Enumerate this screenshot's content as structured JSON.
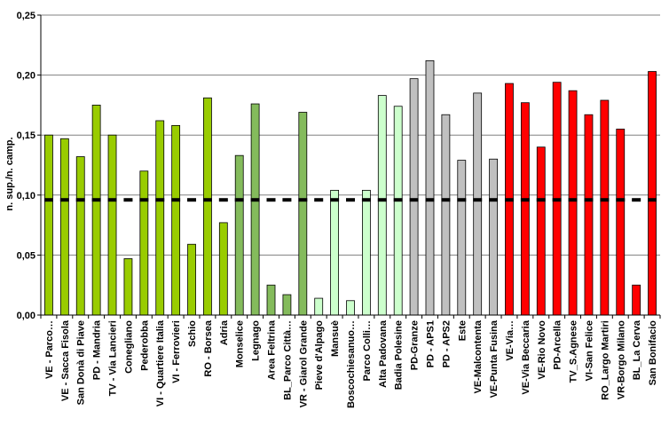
{
  "chart_data": {
    "type": "bar",
    "title": "",
    "xlabel": "",
    "ylabel": "n. sup./n. camp.",
    "ylim": [
      0,
      0.25
    ],
    "yticks": [
      0,
      0.05,
      0.1,
      0.15,
      0.2,
      0.25
    ],
    "yticks_labels": [
      "0,00",
      "0,05",
      "0,10",
      "0,15",
      "0,20",
      "0,25"
    ],
    "grid": "horizontal",
    "legend": "none",
    "reference_line": {
      "value": 0.096,
      "style": "dashed",
      "color": "#000000"
    },
    "categories": [
      "VE - Parco…",
      "VE - Sacca Fisola",
      "San Donà di Piave",
      "PD - Mandria",
      "TV - Via Lancieri",
      "Conegliano",
      "Pederobba",
      "VI - Quartiere Italia",
      "VI - Ferrovieri",
      "Schio",
      "RO - Borsea",
      "Adria",
      "Monselice",
      "Legnago",
      "Area Feltrina",
      "BL_Parco Città…",
      "VR - Giarol Grande",
      "Pieve d'Alpago",
      "Mansuè",
      "Boscochiesanuo…",
      "Parco Colli…",
      "Alta Padovana",
      "Badia Polesine",
      "PD-Granze",
      "PD - APS1",
      "PD - APS2",
      "Este",
      "VE-Malcontenta",
      "VE-Punta Fusina",
      "VE-Via…",
      "VE-Via Beccaria",
      "VE-Rio Novo",
      "PD-Arcella",
      "TV_S.Agnese",
      "VI-San Felice",
      "RO_Largo Martiri",
      "VR-Borgo Milano",
      "BL_La Cerva",
      "San Bonifacio"
    ],
    "values": [
      0.15,
      0.147,
      0.132,
      0.175,
      0.15,
      0.047,
      0.12,
      0.162,
      0.158,
      0.059,
      0.181,
      0.077,
      0.133,
      0.176,
      0.025,
      0.017,
      0.169,
      0.014,
      0.104,
      0.012,
      0.104,
      0.183,
      0.174,
      0.197,
      0.212,
      0.167,
      0.129,
      0.185,
      0.13,
      0.193,
      0.177,
      0.14,
      0.194,
      0.187,
      0.167,
      0.179,
      0.155,
      0.025,
      0.203
    ],
    "bar_colors": [
      "#99cc00",
      "#99cc00",
      "#99cc00",
      "#99cc00",
      "#99cc00",
      "#99cc00",
      "#99cc00",
      "#99cc00",
      "#99cc00",
      "#99cc00",
      "#99cc00",
      "#99cc00",
      "#84bb5c",
      "#84bb5c",
      "#84bb5c",
      "#84bb5c",
      "#84bb5c",
      "#ccffcc",
      "#ccffcc",
      "#ccffcc",
      "#ccffcc",
      "#ccffcc",
      "#ccffcc",
      "#c0c0c0",
      "#c0c0c0",
      "#c0c0c0",
      "#c0c0c0",
      "#c0c0c0",
      "#c0c0c0",
      "#ff0000",
      "#ff0000",
      "#ff0000",
      "#ff0000",
      "#ff0000",
      "#ff0000",
      "#ff0000",
      "#ff0000",
      "#ff0000",
      "#ff0000"
    ]
  }
}
